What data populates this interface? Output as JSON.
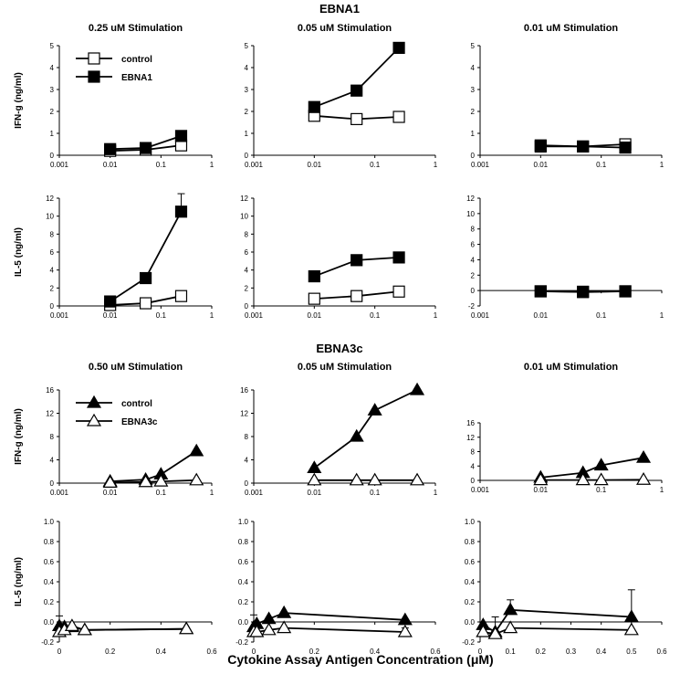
{
  "page": {
    "section_ebna1": "EBNA1",
    "section_ebna3c": "EBNA3c",
    "common_xlabel": "Cytokine Assay Antigen Concentration (μM)"
  },
  "legends": {
    "ebna1": {
      "open_square": "control",
      "filled_square": "EBNA1"
    },
    "ebna3c": {
      "filled_triangle": "control",
      "open_triangle": "EBNA3c"
    }
  },
  "chart_data": [
    {
      "id": "e1_ifn_025",
      "type": "line",
      "title": "0.25 uM Stimulation",
      "ylabel": "IFN-g (ng/ml)",
      "xscale": "log",
      "xlim": [
        0.001,
        1
      ],
      "xticks": [
        0.001,
        0.01,
        0.1,
        1
      ],
      "xtick_labels": [
        "0.001",
        "0.01",
        "0.1",
        "1"
      ],
      "ylim": [
        0,
        5
      ],
      "yticks": [
        0,
        1,
        2,
        3,
        4,
        5
      ],
      "ytick_labels": [
        "0",
        "1",
        "2",
        "3",
        "4",
        "5"
      ],
      "legend": "top-left",
      "series": [
        {
          "name": "control",
          "marker": "open-square",
          "x": [
            0.01,
            0.05,
            0.25
          ],
          "y": [
            0.2,
            0.25,
            0.45
          ]
        },
        {
          "name": "EBNA1",
          "marker": "filled-square",
          "x": [
            0.01,
            0.05,
            0.25
          ],
          "y": [
            0.28,
            0.33,
            0.88
          ]
        }
      ]
    },
    {
      "id": "e1_ifn_005",
      "type": "line",
      "title": "0.05 uM Stimulation",
      "ylabel": "",
      "xscale": "log",
      "xlim": [
        0.001,
        1
      ],
      "xticks": [
        0.001,
        0.01,
        0.1,
        1
      ],
      "xtick_labels": [
        "0.001",
        "0.01",
        "0.1",
        "1"
      ],
      "ylim": [
        0,
        5
      ],
      "yticks": [
        0,
        1,
        2,
        3,
        4,
        5
      ],
      "ytick_labels": [
        "0",
        "1",
        "2",
        "3",
        "4",
        "5"
      ],
      "series": [
        {
          "name": "control",
          "marker": "open-square",
          "x": [
            0.01,
            0.05,
            0.25
          ],
          "y": [
            1.8,
            1.65,
            1.75
          ]
        },
        {
          "name": "EBNA1",
          "marker": "filled-square",
          "x": [
            0.01,
            0.05,
            0.25
          ],
          "y": [
            2.2,
            2.95,
            4.9
          ]
        }
      ]
    },
    {
      "id": "e1_ifn_001",
      "type": "line",
      "title": "0.01 uM Stimulation",
      "ylabel": "",
      "xscale": "log",
      "xlim": [
        0.001,
        1
      ],
      "xticks": [
        0.001,
        0.01,
        0.1,
        1
      ],
      "xtick_labels": [
        "0.001",
        "0.01",
        "0.1",
        "1"
      ],
      "ylim": [
        0,
        5
      ],
      "yticks": [
        0,
        1,
        2,
        3,
        4,
        5
      ],
      "ytick_labels": [
        "0",
        "1",
        "2",
        "3",
        "4",
        "5"
      ],
      "series": [
        {
          "name": "control",
          "marker": "open-square",
          "x": [
            0.01,
            0.05,
            0.25
          ],
          "y": [
            0.4,
            0.4,
            0.5
          ]
        },
        {
          "name": "EBNA1",
          "marker": "filled-square",
          "x": [
            0.01,
            0.05,
            0.25
          ],
          "y": [
            0.45,
            0.4,
            0.35
          ]
        }
      ]
    },
    {
      "id": "e1_il5_025",
      "type": "line",
      "title": "",
      "ylabel": "IL-5 (ng/ml)",
      "xscale": "log",
      "xlim": [
        0.001,
        1
      ],
      "xticks": [
        0.001,
        0.01,
        0.1,
        1
      ],
      "xtick_labels": [
        "0.001",
        "0.01",
        "0.1",
        "1"
      ],
      "ylim": [
        0,
        12
      ],
      "yticks": [
        0,
        2,
        4,
        6,
        8,
        10,
        12
      ],
      "ytick_labels": [
        "0",
        "2",
        "4",
        "6",
        "8",
        "10",
        "12"
      ],
      "series": [
        {
          "name": "control",
          "marker": "open-square",
          "x": [
            0.01,
            0.05,
            0.25
          ],
          "y": [
            0.1,
            0.3,
            1.1
          ]
        },
        {
          "name": "EBNA1",
          "marker": "filled-square",
          "x": [
            0.01,
            0.05,
            0.25
          ],
          "y": [
            0.5,
            3.1,
            10.5
          ],
          "err": [
            0,
            0.6,
            2.0
          ]
        }
      ]
    },
    {
      "id": "e1_il5_005",
      "type": "line",
      "title": "",
      "ylabel": "",
      "xscale": "log",
      "xlim": [
        0.001,
        1
      ],
      "xticks": [
        0.001,
        0.01,
        0.1,
        1
      ],
      "xtick_labels": [
        "0.001",
        "0.01",
        "0.1",
        "1"
      ],
      "ylim": [
        0,
        12
      ],
      "yticks": [
        0,
        2,
        4,
        6,
        8,
        10,
        12
      ],
      "ytick_labels": [
        "0",
        "2",
        "4",
        "6",
        "8",
        "10",
        "12"
      ],
      "series": [
        {
          "name": "control",
          "marker": "open-square",
          "x": [
            0.01,
            0.05,
            0.25
          ],
          "y": [
            0.8,
            1.1,
            1.6
          ]
        },
        {
          "name": "EBNA1",
          "marker": "filled-square",
          "x": [
            0.01,
            0.05,
            0.25
          ],
          "y": [
            3.3,
            5.1,
            5.4
          ]
        }
      ]
    },
    {
      "id": "e1_il5_001",
      "type": "line",
      "title": "",
      "ylabel": "",
      "xscale": "log",
      "xlim": [
        0.001,
        1
      ],
      "xticks": [
        0.001,
        0.01,
        0.1,
        1
      ],
      "xtick_labels": [
        "0.001",
        "0.01",
        "0.1",
        "1"
      ],
      "ylim": [
        -2,
        12
      ],
      "yticks": [
        -2,
        0,
        2,
        4,
        6,
        8,
        10,
        12
      ],
      "ytick_labels": [
        "-2",
        "0",
        "2",
        "4",
        "6",
        "8",
        "10",
        "12"
      ],
      "series": [
        {
          "name": "control",
          "marker": "open-square",
          "x": [
            0.01,
            0.05,
            0.25
          ],
          "y": [
            -0.1,
            -0.2,
            -0.1
          ]
        },
        {
          "name": "EBNA1",
          "marker": "filled-square",
          "x": [
            0.01,
            0.05,
            0.25
          ],
          "y": [
            -0.1,
            -0.15,
            -0.1
          ]
        }
      ]
    },
    {
      "id": "e3_ifn_050",
      "type": "line",
      "title": "0.50 uM Stimulation",
      "ylabel": "IFN-g (ng/ml)",
      "xscale": "log",
      "xlim": [
        0.001,
        1
      ],
      "xticks": [
        0.001,
        0.01,
        0.1,
        1
      ],
      "xtick_labels": [
        "0.001",
        "0.01",
        "0.1",
        "1"
      ],
      "ylim": [
        0,
        16
      ],
      "yticks": [
        0,
        4,
        8,
        12,
        16
      ],
      "ytick_labels": [
        "0",
        "4",
        "8",
        "12",
        "16"
      ],
      "legend": "top-left",
      "series": [
        {
          "name": "control",
          "marker": "filled-triangle",
          "x": [
            0.01,
            0.05,
            0.1,
            0.5
          ],
          "y": [
            0.3,
            0.6,
            1.5,
            5.5
          ]
        },
        {
          "name": "EBNA3c",
          "marker": "open-triangle",
          "x": [
            0.01,
            0.05,
            0.1,
            0.5
          ],
          "y": [
            0.1,
            0.2,
            0.3,
            0.5
          ]
        }
      ]
    },
    {
      "id": "e3_ifn_005",
      "type": "line",
      "title": "0.05 uM Stimulation",
      "ylabel": "",
      "xscale": "log",
      "xlim": [
        0.001,
        1
      ],
      "xticks": [
        0.001,
        0.01,
        0.1,
        1
      ],
      "xtick_labels": [
        "0.001",
        "0.01",
        "0.1",
        "1"
      ],
      "ylim": [
        0,
        16
      ],
      "yticks": [
        0,
        4,
        8,
        12,
        16
      ],
      "ytick_labels": [
        "0",
        "4",
        "8",
        "12",
        "16"
      ],
      "series": [
        {
          "name": "control",
          "marker": "filled-triangle",
          "x": [
            0.01,
            0.05,
            0.1,
            0.5
          ],
          "y": [
            2.6,
            8.0,
            12.5,
            16.0
          ]
        },
        {
          "name": "EBNA3c",
          "marker": "open-triangle",
          "x": [
            0.01,
            0.05,
            0.1,
            0.5
          ],
          "y": [
            0.5,
            0.5,
            0.5,
            0.5
          ]
        }
      ]
    },
    {
      "id": "e3_ifn_001",
      "type": "line",
      "title": "0.01 uM Stimulation",
      "ylabel": "",
      "xscale": "log",
      "xlim": [
        0.001,
        1
      ],
      "xticks": [
        0.001,
        0.01,
        0.1,
        1
      ],
      "xtick_labels": [
        "0.001",
        "0.01",
        "0.1",
        "1"
      ],
      "ylim": [
        0,
        16
      ],
      "yticks": [
        0,
        4,
        8,
        12,
        16
      ],
      "ytick_labels": [
        "0",
        "4",
        "8",
        "12",
        "16"
      ],
      "series": [
        {
          "name": "control",
          "marker": "filled-triangle",
          "x": [
            0.01,
            0.05,
            0.1,
            0.5
          ],
          "y": [
            0.8,
            2.1,
            4.2,
            6.3
          ]
        },
        {
          "name": "EBNA3c",
          "marker": "open-triangle",
          "x": [
            0.01,
            0.05,
            0.1,
            0.5
          ],
          "y": [
            0.1,
            0.1,
            0.1,
            0.2
          ]
        }
      ]
    },
    {
      "id": "e3_il5_050",
      "type": "line",
      "title": "",
      "ylabel": "IL-5 (ng/ml)",
      "xscale": "linear",
      "xlim": [
        0,
        0.6
      ],
      "xticks": [
        0,
        0.2,
        0.4,
        0.6
      ],
      "xtick_labels": [
        "0",
        "0.2",
        "0.4",
        "0.6"
      ],
      "ylim": [
        -0.2,
        1.0
      ],
      "yticks": [
        -0.2,
        0,
        0.2,
        0.4,
        0.6,
        0.8,
        1.0
      ],
      "ytick_labels": [
        "-0.2",
        "0.0",
        "0.2",
        "0.4",
        "0.6",
        "0.8",
        "1.0"
      ],
      "series": [
        {
          "name": "control",
          "marker": "filled-triangle",
          "x": [
            0,
            0.02,
            0.05,
            0.1,
            0.5
          ],
          "y": [
            -0.04,
            -0.05,
            -0.05,
            -0.08,
            -0.07
          ],
          "err": [
            0.1,
            0,
            0,
            0,
            0
          ]
        },
        {
          "name": "EBNA3c",
          "marker": "open-triangle",
          "x": [
            0,
            0.02,
            0.05,
            0.1,
            0.5
          ],
          "y": [
            -0.1,
            -0.08,
            -0.04,
            -0.08,
            -0.07
          ]
        }
      ]
    },
    {
      "id": "e3_il5_005",
      "type": "line",
      "title": "",
      "ylabel": "",
      "xscale": "linear",
      "xlim": [
        0,
        0.6
      ],
      "xticks": [
        0,
        0.2,
        0.4,
        0.6
      ],
      "xtick_labels": [
        "0",
        "0.2",
        "0.4",
        "0.6"
      ],
      "ylim": [
        -0.2,
        1.0
      ],
      "yticks": [
        -0.2,
        0,
        0.2,
        0.4,
        0.6,
        0.8,
        1.0
      ],
      "ytick_labels": [
        "-0.2",
        "0.0",
        "0.2",
        "0.4",
        "0.6",
        "0.8",
        "1.0"
      ],
      "series": [
        {
          "name": "control",
          "marker": "filled-triangle",
          "x": [
            0,
            0.01,
            0.05,
            0.1,
            0.5
          ],
          "y": [
            -0.05,
            -0.02,
            0.03,
            0.09,
            0.02
          ],
          "err": [
            0.12,
            0,
            0,
            0,
            0
          ]
        },
        {
          "name": "EBNA3c",
          "marker": "open-triangle",
          "x": [
            0,
            0.01,
            0.05,
            0.1,
            0.5
          ],
          "y": [
            -0.1,
            -0.1,
            -0.08,
            -0.06,
            -0.1
          ],
          "err": [
            0,
            0,
            0,
            0,
            0.04
          ]
        }
      ]
    },
    {
      "id": "e3_il5_001",
      "type": "line",
      "title": "",
      "ylabel": "",
      "xscale": "linear",
      "xlim": [
        0,
        0.6
      ],
      "xticks": [
        0,
        0.1,
        0.2,
        0.3,
        0.4,
        0.5,
        0.6
      ],
      "xtick_labels": [
        "0",
        "0.1",
        "0.2",
        "0.3",
        "0.4",
        "0.5",
        "0.6"
      ],
      "ylim": [
        -0.2,
        1.0
      ],
      "yticks": [
        -0.2,
        0,
        0.2,
        0.4,
        0.6,
        0.8,
        1.0
      ],
      "ytick_labels": [
        "-0.2",
        "0.0",
        "0.2",
        "0.4",
        "0.6",
        "0.8",
        "1.0"
      ],
      "series": [
        {
          "name": "control",
          "marker": "filled-triangle",
          "x": [
            0.01,
            0.05,
            0.1,
            0.5
          ],
          "y": [
            -0.03,
            -0.1,
            0.12,
            0.05
          ],
          "err": [
            0,
            0.15,
            0.1,
            0.27
          ]
        },
        {
          "name": "EBNA3c",
          "marker": "open-triangle",
          "x": [
            0.01,
            0.05,
            0.1,
            0.5
          ],
          "y": [
            -0.1,
            -0.12,
            -0.06,
            -0.08
          ]
        }
      ]
    }
  ]
}
